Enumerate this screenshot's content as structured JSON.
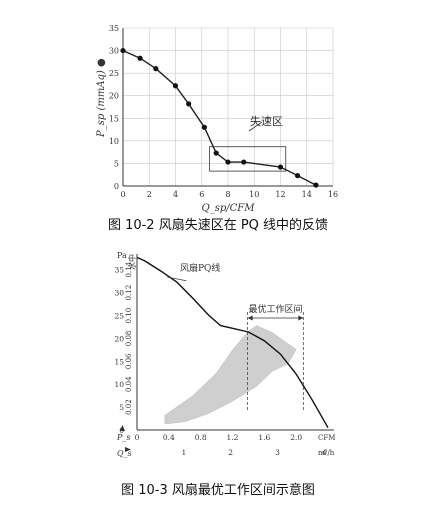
{
  "chart_data": [
    {
      "type": "line",
      "ylabel": "P_sp (mmAq) ●",
      "xlabel": "Q_sp/CFM",
      "xlim": [
        0,
        16
      ],
      "ylim": [
        0,
        35
      ],
      "x_ticks": [
        "0",
        "2",
        "4",
        "6",
        "8",
        "10",
        "12",
        "14",
        "16"
      ],
      "y_ticks": [
        "0",
        "5",
        "10",
        "15",
        "20",
        "25",
        "30",
        "35"
      ],
      "grid": true,
      "annotation": "失速区",
      "stall_region": {
        "x": [
          6.6,
          12.4
        ],
        "y": [
          3.3,
          8.7
        ]
      },
      "series": [
        {
          "x": [
            0,
            1.3,
            2.5,
            4,
            5,
            6.2,
            7.1,
            8,
            9.2,
            12,
            13.3,
            14.7
          ],
          "y": [
            30,
            28.3,
            26,
            22.2,
            18.2,
            13,
            7.3,
            5.3,
            5.3,
            4.2,
            2.3,
            0.2
          ]
        }
      ],
      "caption": "图 10-2  风扇失速区在 PQ 线中的反馈"
    },
    {
      "type": "line",
      "y_axis_top_label": "Pa",
      "y_axis_top_label2": "水中",
      "y_ticks_pa": [
        "0",
        "5",
        "10",
        "15",
        "20",
        "25",
        "30",
        "35"
      ],
      "y_ticks_water": [
        "0.02",
        "0.04",
        "0.06",
        "0.08",
        "0.10",
        "0.12",
        "0.14"
      ],
      "y_axis_bottom_label": "P_s",
      "x_ticks_cfm": [
        "0",
        "0.4",
        "0.8",
        "1.2",
        "1.6",
        "2.0"
      ],
      "x_unit_cfm": "CFM",
      "x_ticks_m3h": [
        "1",
        "2",
        "3",
        "4"
      ],
      "x_unit_m3h": "m³/h",
      "x_axis_label": "Q_s",
      "curve_label": "风扇PQ线",
      "region_label": "最优工作区间",
      "xlim": [
        0,
        2.4
      ],
      "ylim": [
        0,
        38
      ],
      "series": [
        {
          "x": [
            0,
            0.1,
            0.3,
            0.5,
            0.7,
            0.9,
            1.05,
            1.2,
            1.4,
            1.6,
            1.8,
            2.0,
            2.2,
            2.4
          ],
          "y": [
            37.7,
            36.9,
            34.7,
            32.3,
            28.8,
            25.1,
            22.8,
            22.2,
            21.4,
            19.5,
            16.6,
            12.2,
            6.6,
            0.5
          ]
        }
      ],
      "optimal_range_cfm": [
        1.39,
        2.09
      ],
      "caption": "图 10-3  风扇最优工作区间示意图"
    }
  ]
}
